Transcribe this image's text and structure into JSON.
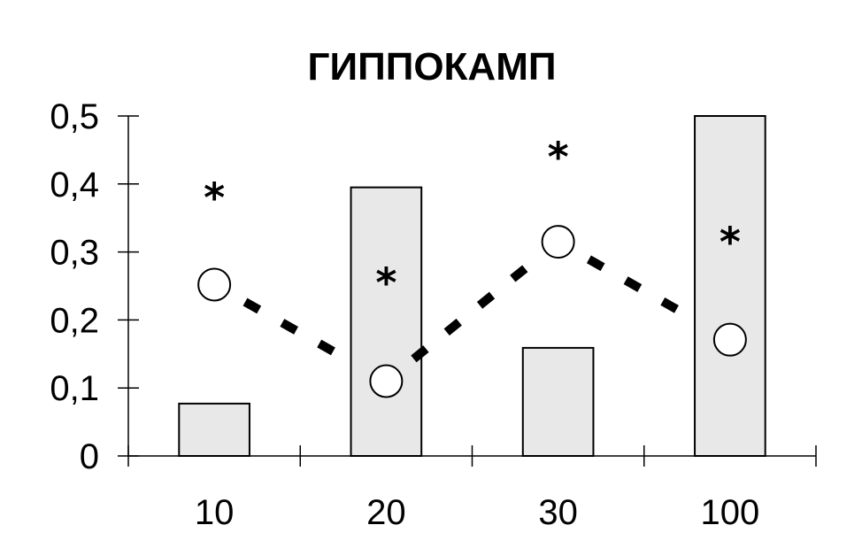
{
  "chart_data": {
    "type": "bar",
    "title": "ГИППОКАМП",
    "xlabel": "",
    "ylabel": "",
    "categories": [
      "10",
      "20",
      "30",
      "100"
    ],
    "ylim": [
      0,
      0.5
    ],
    "yticks": [
      "0",
      "0,1",
      "0,2",
      "0,3",
      "0,4",
      "0,5"
    ],
    "grid": false,
    "legend": "none",
    "series": [
      {
        "kind": "bar",
        "values": [
          0.077,
          0.395,
          0.159,
          0.5
        ],
        "fill": "#e8e8e8",
        "stroke": "#000000"
      },
      {
        "kind": "line",
        "style": "dashed",
        "marker": "open-circle",
        "values": [
          0.252,
          0.11,
          0.315,
          0.171
        ],
        "stroke": "#000000"
      }
    ],
    "annotations": [
      {
        "category": "10",
        "text": "*",
        "y": 0.39
      },
      {
        "category": "20",
        "text": "*",
        "y": 0.265
      },
      {
        "category": "30",
        "text": "*",
        "y": 0.45
      },
      {
        "category": "100",
        "text": "*",
        "y": 0.325
      }
    ]
  }
}
